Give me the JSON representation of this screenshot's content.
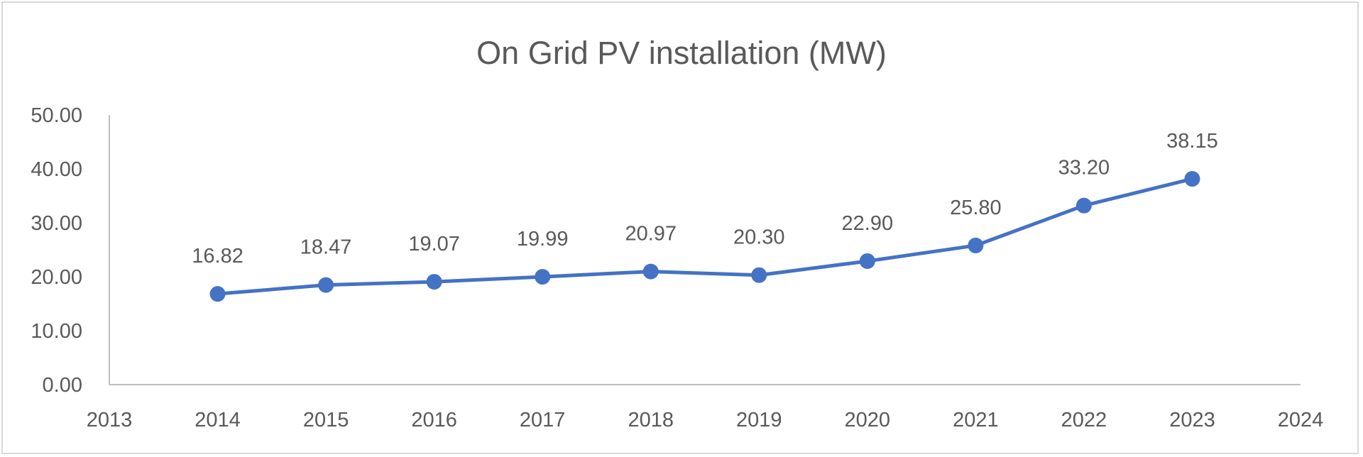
{
  "chart_data": {
    "type": "line",
    "title": "On Grid PV installation (MW)",
    "xlabel": "",
    "ylabel": "",
    "x": [
      2014,
      2015,
      2016,
      2017,
      2018,
      2019,
      2020,
      2021,
      2022,
      2023
    ],
    "series": [
      {
        "name": "On Grid PV installation (MW)",
        "values": [
          16.82,
          18.47,
          19.07,
          19.99,
          20.97,
          20.3,
          22.9,
          25.8,
          33.2,
          38.15
        ],
        "color": "#4472C4"
      }
    ],
    "data_labels": [
      "16.82",
      "18.47",
      "19.07",
      "19.99",
      "20.97",
      "20.30",
      "22.90",
      "25.80",
      "33.20",
      "38.15"
    ],
    "xlim": [
      2013,
      2024
    ],
    "ylim": [
      0,
      50
    ],
    "x_ticks": [
      "2013",
      "2014",
      "2015",
      "2016",
      "2017",
      "2018",
      "2019",
      "2020",
      "2021",
      "2022",
      "2023",
      "2024"
    ],
    "y_ticks": [
      "0.00",
      "10.00",
      "20.00",
      "30.00",
      "40.00",
      "50.00"
    ],
    "grid": false,
    "legend": "none"
  }
}
